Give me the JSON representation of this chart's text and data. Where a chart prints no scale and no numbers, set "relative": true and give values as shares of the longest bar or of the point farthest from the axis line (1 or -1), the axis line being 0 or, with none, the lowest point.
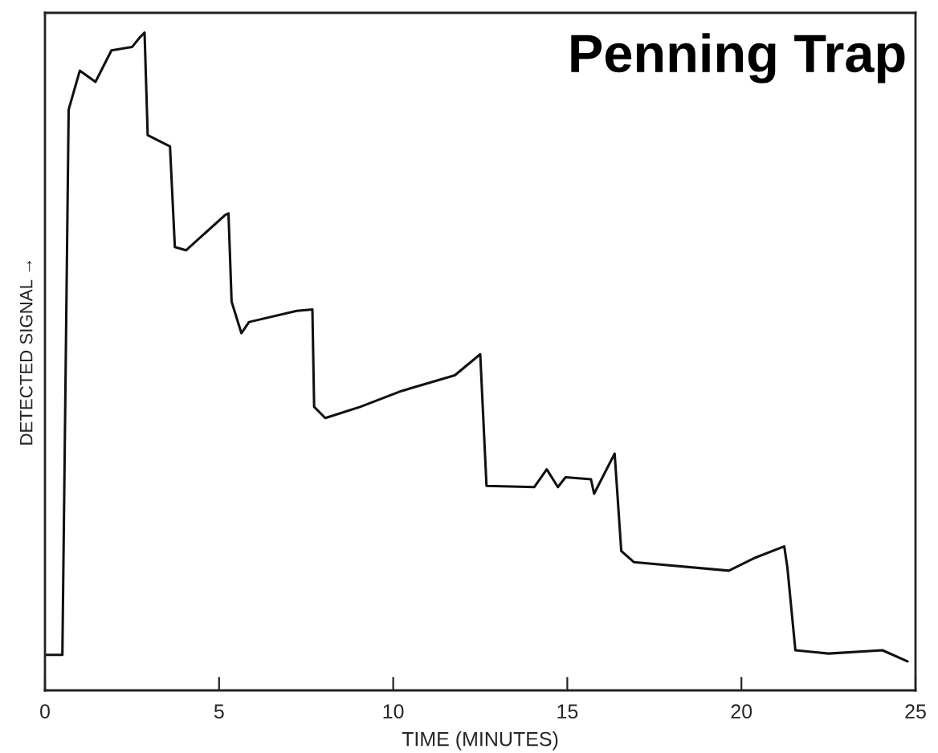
{
  "chart_data": {
    "type": "line",
    "title": "Penning Trap",
    "xlabel": "TIME (MINUTES)",
    "ylabel": "DETECTED SIGNAL →",
    "relative": true,
    "xlim": [
      0,
      25
    ],
    "xticks": [
      0,
      5,
      10,
      15,
      20,
      25
    ],
    "grid": false,
    "marker": "none",
    "line_style": "solid",
    "series": [
      {
        "color": "#111111",
        "x": [
          0,
          0.41,
          0.5,
          0.68,
          1.0,
          1.45,
          1.91,
          2.5,
          2.73,
          2.86,
          2.95,
          3.59,
          3.73,
          4.05,
          5.18,
          5.27,
          5.36,
          5.64,
          5.86,
          7.23,
          7.68,
          7.73,
          8.05,
          9.05,
          10.23,
          11.77,
          12.5,
          12.68,
          14.05,
          14.41,
          14.73,
          14.95,
          15.68,
          15.77,
          16.36,
          16.55,
          16.91,
          19.64,
          20.41,
          21.23,
          21.32,
          21.55,
          22.5,
          24.05,
          24.77
        ],
        "values": [
          0.054,
          0.054,
          0.054,
          0.883,
          0.942,
          0.925,
          0.973,
          0.978,
          0.993,
          1.0,
          0.844,
          0.827,
          0.674,
          0.669,
          0.723,
          0.725,
          0.591,
          0.543,
          0.56,
          0.577,
          0.579,
          0.431,
          0.414,
          0.431,
          0.455,
          0.479,
          0.511,
          0.311,
          0.309,
          0.336,
          0.309,
          0.324,
          0.321,
          0.299,
          0.36,
          0.212,
          0.195,
          0.182,
          0.202,
          0.219,
          0.187,
          0.061,
          0.056,
          0.061,
          0.044
        ]
      }
    ]
  }
}
